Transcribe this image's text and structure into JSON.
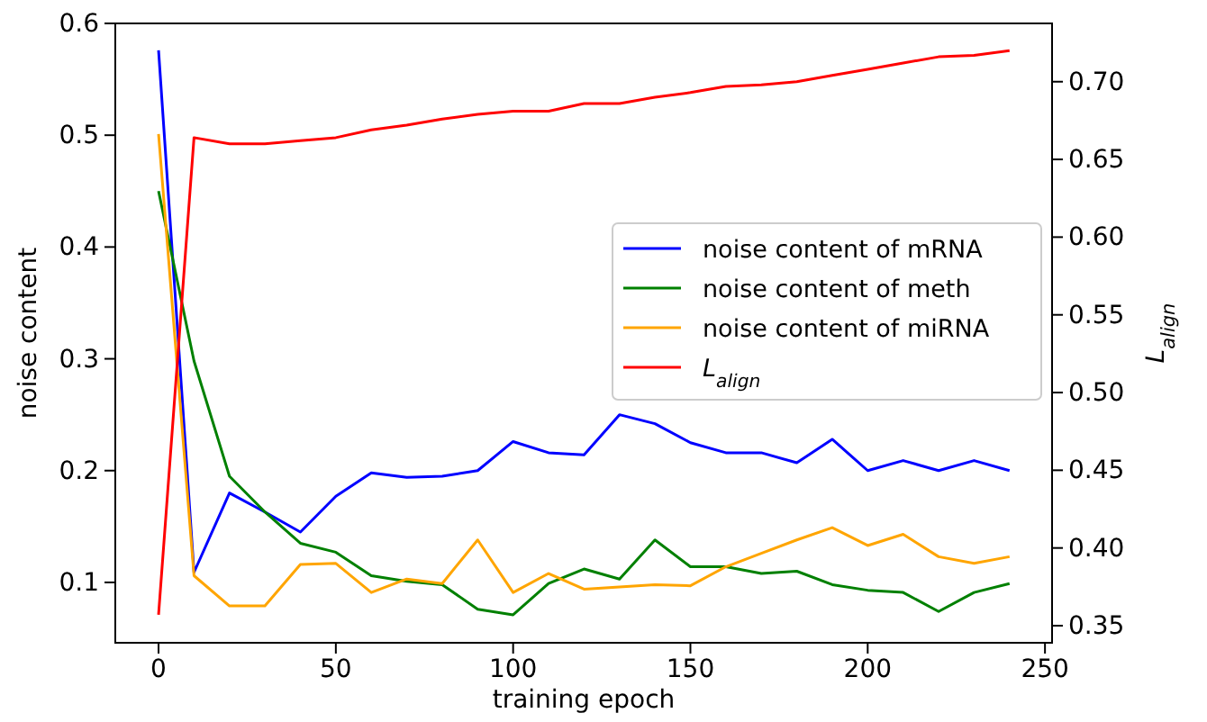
{
  "chart_data": {
    "type": "line",
    "xlabel": "training epoch",
    "ylabel": "noise content",
    "y2label": "L$_{align}$",
    "x": [
      0,
      10,
      20,
      30,
      40,
      50,
      60,
      70,
      80,
      90,
      100,
      110,
      120,
      130,
      140,
      150,
      160,
      170,
      180,
      190,
      200,
      210,
      220,
      230,
      240
    ],
    "series": [
      {
        "name": "noise content of mRNA",
        "color": "#0000ff",
        "values": [
          0.576,
          0.109,
          0.18,
          0.163,
          0.145,
          0.177,
          0.198,
          0.194,
          0.195,
          0.2,
          0.226,
          0.216,
          0.214,
          0.25,
          0.242,
          0.225,
          0.216,
          0.216,
          0.207,
          0.228,
          0.2,
          0.209,
          0.2,
          0.209,
          0.2
        ]
      },
      {
        "name": "noise content of meth",
        "color": "#008000",
        "values": [
          0.45,
          0.298,
          0.195,
          0.163,
          0.135,
          0.127,
          0.106,
          0.101,
          0.098,
          0.076,
          0.071,
          0.099,
          0.112,
          0.103,
          0.138,
          0.114,
          0.114,
          0.108,
          0.11,
          0.098,
          0.093,
          0.091,
          0.074,
          0.091,
          0.099
        ]
      },
      {
        "name": "noise content of miRNA",
        "color": "#ffa500",
        "values": [
          0.501,
          0.106,
          0.079,
          0.079,
          0.116,
          0.117,
          0.091,
          0.103,
          0.099,
          0.138,
          0.091,
          0.108,
          0.094,
          0.096,
          0.098,
          0.097,
          0.114,
          0.126,
          0.138,
          0.149,
          0.133,
          0.143,
          0.123,
          0.117,
          0.123
        ]
      },
      {
        "name": "L$_{align}$",
        "color": "#ff0000",
        "axis": "y2",
        "values": [
          0.357,
          0.664,
          0.66,
          0.66,
          0.662,
          0.664,
          0.669,
          0.672,
          0.676,
          0.679,
          0.681,
          0.681,
          0.686,
          0.686,
          0.69,
          0.693,
          0.697,
          0.698,
          0.7,
          0.704,
          0.708,
          0.712,
          0.716,
          0.717,
          0.72
        ]
      }
    ],
    "xlim": [
      -12.2,
      252
    ],
    "xticks": [
      0,
      50,
      100,
      150,
      200,
      250
    ],
    "ylim": [
      0.046,
      0.6
    ],
    "yticks": [
      0.1,
      0.2,
      0.3,
      0.4,
      0.5,
      0.6
    ],
    "y2lim": [
      0.339,
      0.7375
    ],
    "y2ticks": [
      {
        "value": 0.35,
        "label": "0.35"
      },
      {
        "value": 0.4,
        "label": "0.40"
      },
      {
        "value": 0.45,
        "label": "0.45"
      },
      {
        "value": 0.5,
        "label": "0.50"
      },
      {
        "value": 0.55,
        "label": "0.55"
      },
      {
        "value": 0.6,
        "label": "0.60"
      },
      {
        "value": 0.65,
        "label": "0.65"
      },
      {
        "value": 0.7,
        "label": "0.70"
      }
    ],
    "legend": "right",
    "grid": false,
    "marker": "none",
    "line_style": "solid"
  }
}
